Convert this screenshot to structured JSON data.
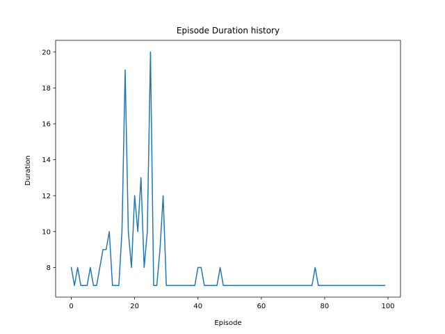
{
  "chart_data": {
    "type": "line",
    "title": "Episode Duration history",
    "xlabel": "Episode",
    "ylabel": "Duration",
    "xlim": [
      -4.95,
      103.95
    ],
    "ylim": [
      6.35,
      20.65
    ],
    "xticks": [
      0,
      20,
      40,
      60,
      80,
      100
    ],
    "yticks": [
      8,
      10,
      12,
      14,
      16,
      18,
      20
    ],
    "grid": false,
    "series": [
      {
        "color": "#1f77b4",
        "x": [
          0,
          1,
          2,
          3,
          4,
          5,
          6,
          7,
          8,
          9,
          10,
          11,
          12,
          13,
          14,
          15,
          16,
          17,
          18,
          19,
          20,
          21,
          22,
          23,
          24,
          25,
          26,
          27,
          28,
          29,
          30,
          31,
          32,
          33,
          34,
          35,
          36,
          37,
          38,
          39,
          40,
          41,
          42,
          43,
          44,
          45,
          46,
          47,
          48,
          49,
          50,
          51,
          52,
          53,
          54,
          55,
          56,
          57,
          58,
          59,
          60,
          61,
          62,
          63,
          64,
          65,
          66,
          67,
          68,
          69,
          70,
          71,
          72,
          73,
          74,
          75,
          76,
          77,
          78,
          79,
          80,
          81,
          82,
          83,
          84,
          85,
          86,
          87,
          88,
          89,
          90,
          91,
          92,
          93,
          94,
          95,
          96,
          97,
          98,
          99
        ],
        "values": [
          8,
          7,
          8,
          7,
          7,
          7,
          8,
          7,
          7,
          8,
          9,
          9,
          10,
          7,
          7,
          7,
          10,
          19,
          10,
          8,
          12,
          10,
          13,
          8,
          10,
          20,
          7,
          7,
          9,
          12,
          7,
          7,
          7,
          7,
          7,
          7,
          7,
          7,
          7,
          7,
          8,
          8,
          7,
          7,
          7,
          7,
          7,
          8,
          7,
          7,
          7,
          7,
          7,
          7,
          7,
          7,
          7,
          7,
          7,
          7,
          7,
          7,
          7,
          7,
          7,
          7,
          7,
          7,
          7,
          7,
          7,
          7,
          7,
          7,
          7,
          7,
          7,
          8,
          7,
          7,
          7,
          7,
          7,
          7,
          7,
          7,
          7,
          7,
          7,
          7,
          7,
          7,
          7,
          7,
          7,
          7,
          7,
          7,
          7,
          7
        ]
      }
    ]
  }
}
